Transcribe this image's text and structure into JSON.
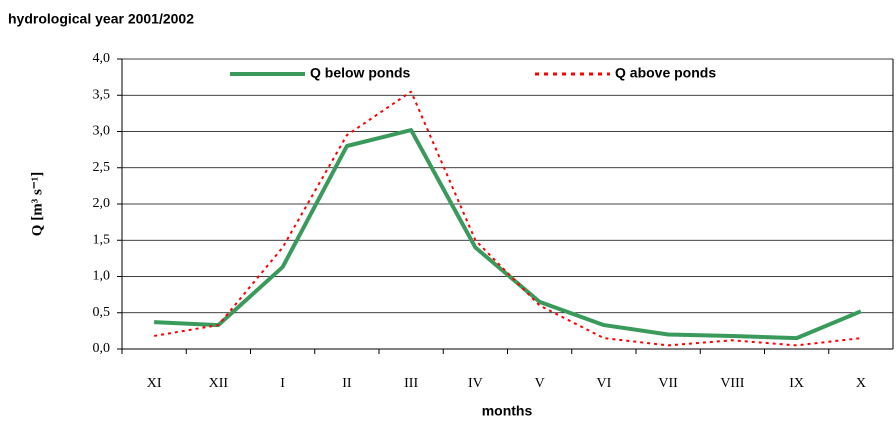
{
  "chart_data": {
    "type": "line",
    "title": "hydrological year 2001/2002",
    "x_label": "months",
    "y_label": "Q [m³ s⁻¹]",
    "categories": [
      "XI",
      "XII",
      "I",
      "II",
      "III",
      "IV",
      "V",
      "VI",
      "VII",
      "VIII",
      "IX",
      "X"
    ],
    "series": [
      {
        "name": "Q below ponds",
        "color": "#3a9a5c",
        "style": "solid",
        "values": [
          0.37,
          0.33,
          1.13,
          2.8,
          3.02,
          1.4,
          0.65,
          0.33,
          0.2,
          0.18,
          0.15,
          0.52
        ]
      },
      {
        "name": "Q above ponds",
        "color": "#ff0000",
        "style": "dotted",
        "values": [
          0.18,
          0.33,
          1.4,
          2.95,
          3.55,
          1.5,
          0.6,
          0.15,
          0.05,
          0.12,
          0.05,
          0.15
        ]
      }
    ],
    "ylim": [
      0,
      4
    ],
    "yticks": [
      {
        "value": 0,
        "label": "0,0"
      },
      {
        "value": 0.5,
        "label": "0,5"
      },
      {
        "value": 1,
        "label": "1,0"
      },
      {
        "value": 1.5,
        "label": "1,5"
      },
      {
        "value": 2,
        "label": "2,0"
      },
      {
        "value": 2.5,
        "label": "2,5"
      },
      {
        "value": 3,
        "label": "3,0"
      },
      {
        "value": 3.5,
        "label": "3,5"
      },
      {
        "value": 4,
        "label": "4,0"
      }
    ],
    "grid": true,
    "legend": "top"
  }
}
